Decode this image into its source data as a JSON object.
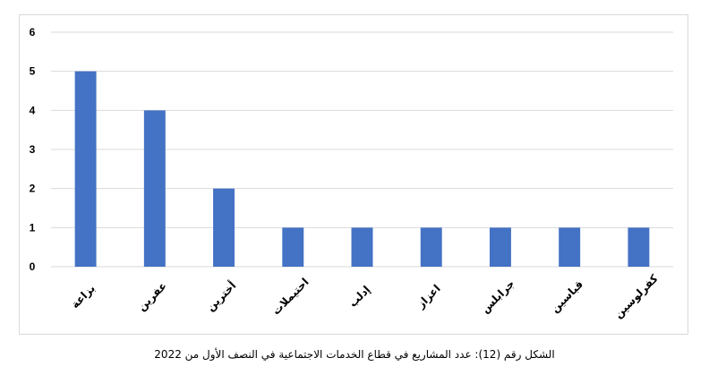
{
  "chart_data": {
    "type": "bar",
    "categories": [
      "بزاعة",
      "عفرين",
      "أخترين",
      "احتيملات",
      "إدلب",
      "اعزاز",
      "جرابلس",
      "قباسين",
      "كفرلوسين"
    ],
    "values": [
      5,
      4,
      2,
      1,
      1,
      1,
      1,
      1,
      1
    ],
    "ylim": [
      0,
      6
    ],
    "yticks": [
      0,
      1,
      2,
      3,
      4,
      5,
      6
    ],
    "grid": true,
    "legend": "none",
    "bar_color": "#4472c4",
    "grid_color": "#d9d9d9"
  },
  "caption": "الشكل رقم (12): عدد المشاريع في قطاع الخدمات الاجتماعية في النصف الأول من 2022"
}
